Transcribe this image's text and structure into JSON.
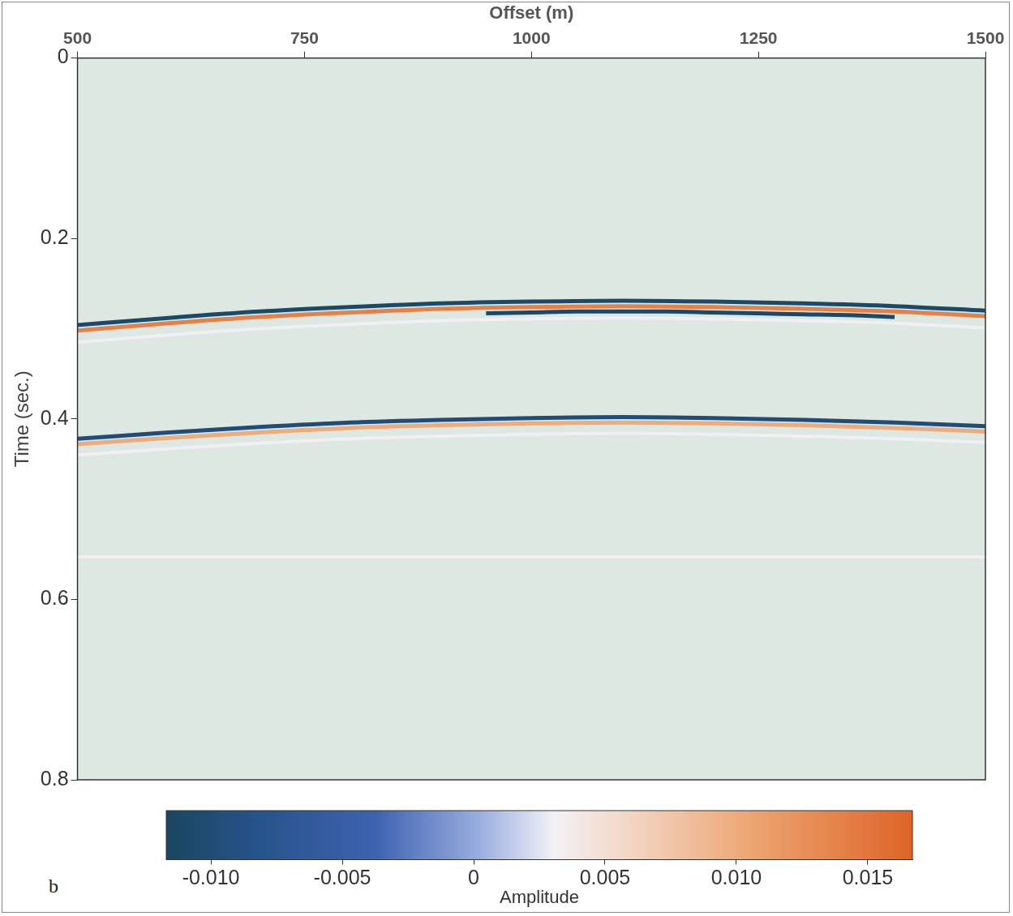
{
  "chart_data": {
    "type": "line",
    "x_label": "Offset (m)",
    "y_label": "Time (sec.)",
    "panel": "b",
    "xlim": [
      500,
      1500
    ],
    "xticks": [
      500,
      750,
      1000,
      1250,
      1500
    ],
    "ylim": [
      0.8,
      0
    ],
    "yticks": [
      0,
      0.2,
      0.4,
      0.6,
      0.8
    ],
    "series": [
      {
        "x": [
          500,
          1500
        ],
        "values": [
          0.553,
          0.553
        ],
        "amplitude": 0.003
      },
      {
        "x": [
          500,
          600,
          700,
          800,
          900,
          1000,
          1100,
          1200,
          1300,
          1400,
          1500
        ],
        "values": [
          0.315,
          0.307,
          0.3,
          0.295,
          0.291,
          0.289,
          0.288,
          0.289,
          0.291,
          0.294,
          0.299
        ],
        "amplitude": 0.003
      },
      {
        "x": [
          500,
          600,
          700,
          800,
          900,
          1000,
          1100,
          1200,
          1300,
          1400,
          1500
        ],
        "values": [
          0.44,
          0.433,
          0.427,
          0.422,
          0.419,
          0.417,
          0.416,
          0.417,
          0.419,
          0.422,
          0.426
        ],
        "amplitude": 0.003
      },
      {
        "x": [
          500,
          600,
          700,
          800,
          900,
          1000,
          1100,
          1200,
          1300,
          1400,
          1500
        ],
        "values": [
          0.296,
          0.288,
          0.281,
          0.276,
          0.272,
          0.27,
          0.269,
          0.27,
          0.272,
          0.275,
          0.28
        ],
        "amplitude": -0.011
      },
      {
        "x": [
          950,
          1000,
          1050,
          1100,
          1150,
          1200,
          1250,
          1300,
          1350,
          1400
        ],
        "values": [
          0.283,
          0.282,
          0.281,
          0.281,
          0.281,
          0.282,
          0.283,
          0.284,
          0.285,
          0.287
        ],
        "amplitude": -0.011
      },
      {
        "x": [
          500,
          600,
          700,
          800,
          900,
          1000,
          1100,
          1200,
          1300,
          1400,
          1500
        ],
        "values": [
          0.422,
          0.415,
          0.409,
          0.404,
          0.401,
          0.399,
          0.398,
          0.399,
          0.401,
          0.404,
          0.408
        ],
        "amplitude": -0.01
      },
      {
        "x": [
          500,
          600,
          700,
          800,
          900,
          1000,
          1100,
          1200,
          1300,
          1400,
          1500
        ],
        "values": [
          0.302,
          0.294,
          0.287,
          0.282,
          0.278,
          0.276,
          0.275,
          0.276,
          0.278,
          0.281,
          0.286
        ],
        "amplitude": 0.014
      },
      {
        "x": [
          500,
          600,
          700,
          800,
          900,
          1000,
          1100,
          1200,
          1300,
          1400,
          1500
        ],
        "values": [
          0.428,
          0.421,
          0.415,
          0.41,
          0.407,
          0.405,
          0.404,
          0.405,
          0.407,
          0.41,
          0.414
        ],
        "amplitude": 0.01
      }
    ],
    "colorbar": {
      "label": "Amplitude",
      "range": [
        -0.0117,
        0.0167
      ],
      "ticks": [
        {
          "value": -0.01,
          "label": "-0.010"
        },
        -0.005,
        0,
        0.005,
        {
          "value": 0.01,
          "label": "0.010"
        },
        0.015
      ]
    }
  }
}
